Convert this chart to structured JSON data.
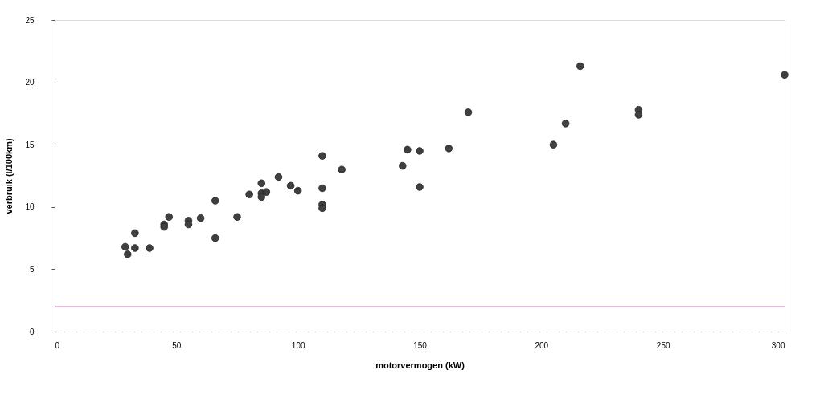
{
  "chart_data": {
    "type": "scatter",
    "xlabel": "motorvermogen (kW)",
    "ylabel": "verbruik (l/100km)",
    "x": [
      29,
      30,
      33,
      33,
      39,
      45,
      45,
      47,
      55,
      55,
      60,
      66,
      66,
      75,
      80,
      85,
      85,
      85,
      87,
      92,
      97,
      100,
      110,
      110,
      110,
      110,
      118,
      143,
      145,
      150,
      150,
      162,
      170,
      205,
      210,
      216,
      240,
      240,
      300
    ],
    "series": [
      {
        "color": "#404040",
        "values": [
          6.8,
          6.2,
          7.9,
          6.7,
          6.7,
          8.6,
          8.4,
          9.2,
          8.9,
          8.6,
          9.1,
          7.5,
          10.5,
          9.2,
          11.0,
          11.9,
          11.1,
          10.8,
          11.2,
          12.4,
          11.7,
          11.3,
          14.1,
          11.5,
          10.2,
          9.9,
          13.0,
          13.3,
          14.6,
          14.5,
          11.6,
          14.7,
          17.6,
          15.0,
          16.7,
          21.3,
          17.8,
          17.4,
          20.6
        ]
      }
    ],
    "xlim": [
      0,
      300
    ],
    "xticks": [
      0,
      50,
      100,
      150,
      200,
      250,
      300
    ],
    "ylim": [
      0,
      25
    ],
    "yticks": [
      0,
      5,
      10,
      15,
      20,
      25
    ],
    "grid": false,
    "marker": "circle",
    "ref_lines": [
      {
        "axis": "y",
        "value": 2,
        "color": "#e070c8"
      }
    ]
  }
}
